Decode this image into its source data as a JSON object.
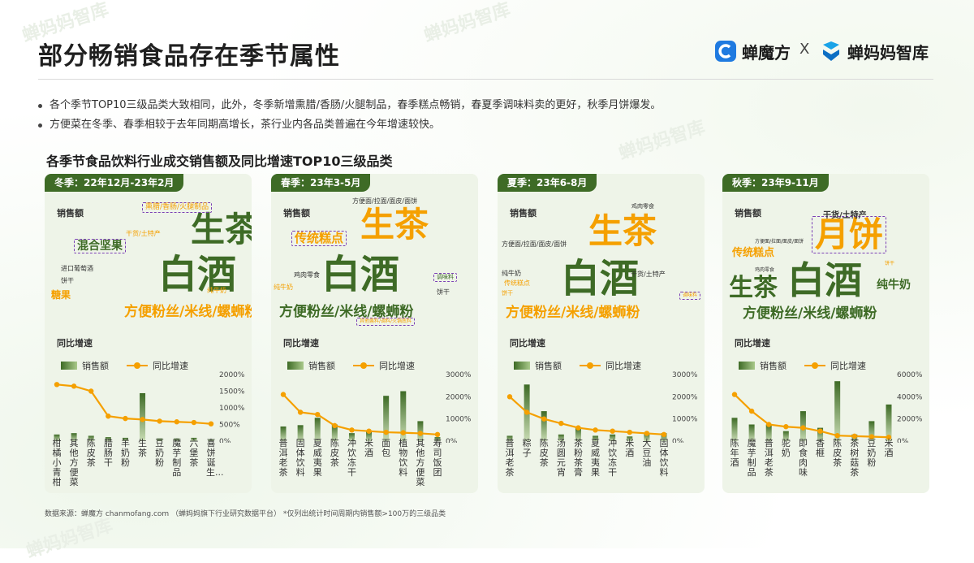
{
  "page": {
    "title": "部分畅销食品存在季节属性",
    "brand_left": "蝉魔方",
    "brand_sep": "X",
    "brand_right": "蝉妈妈智库",
    "watermark": "蝉妈妈智库",
    "bullets": [
      "各个季节TOP10三级品类大致相同，此外，冬季新增熏腊/香肠/火腿制品，春季糕点畅销，春夏季调味料卖的更好，秋季月饼爆发。",
      "方便菜在冬季、春季相较于去年同期高增长，茶行业内各品类普遍在今年增速较快。"
    ],
    "chart_title": "各季节食品饮料行业成交销售额及同比增速TOP10三级品类",
    "source": "数据来源：蝉魔方 chanmofang.com （蝉妈妈旗下行业研究数据平台） *仅列出统计时间周期内销售额>100万的三级品类",
    "sales_label": "销售额",
    "growth_label": "同比增速",
    "legend_sales": "销售额",
    "legend_growth": "同比增速"
  },
  "colors": {
    "dark_green": "#3e6b26",
    "orange": "#f5a000",
    "purple": "#7b3fb5",
    "panel": "#eef4e8"
  },
  "chart_data": [
    {
      "type": "bar+line",
      "season": "冬季：22年12月-23年2月",
      "categories": [
        "柑橘小青柑",
        "其他方便菜",
        "陈皮茶",
        "腊肠干",
        "羊奶粉",
        "生茶",
        "豆奶粉",
        "魔芋制品",
        "六堡茶",
        "喜饼诞生..."
      ],
      "sales": [
        0.1,
        0.12,
        0.08,
        0.06,
        0.05,
        0.72,
        0.04,
        0.04,
        0.05,
        0.03
      ],
      "growth_pct": [
        1700,
        1650,
        1500,
        750,
        680,
        650,
        600,
        580,
        560,
        520
      ],
      "y_ticks": [
        "2000%",
        "1500%",
        "1000%",
        "500%",
        "0%"
      ],
      "y_max": 2000,
      "wordcloud": [
        {
          "text": "白酒",
          "size": 48,
          "color": "#3e6b26",
          "bold": true
        },
        {
          "text": "生茶",
          "size": 42,
          "color": "#3e6b26",
          "bold": true
        },
        {
          "text": "方便粉丝/米线/螺蛳粉",
          "size": 17,
          "color": "#f5a000",
          "bold": true
        },
        {
          "text": "混合坚果",
          "size": 14,
          "color": "#3e6b26",
          "bold": true,
          "box": true
        },
        {
          "text": "熏腊/香肠/火腿制品",
          "size": 9,
          "color": "#f5a000",
          "box": true
        },
        {
          "text": "干货/土特产",
          "size": 8,
          "color": "#f5a000"
        },
        {
          "text": "进口葡萄酒",
          "size": 8,
          "color": "#333"
        },
        {
          "text": "饼干",
          "size": 8,
          "color": "#333"
        },
        {
          "text": "糖果",
          "size": 12,
          "color": "#f5a000",
          "bold": true
        },
        {
          "text": "纯牛奶",
          "size": 8,
          "color": "#f5a000"
        }
      ]
    },
    {
      "type": "bar+line",
      "season": "春季：23年3-5月",
      "categories": [
        "普洱老茶",
        "固体饮料",
        "夏威夷果",
        "陈皮茶",
        "冲饮冻干",
        "米酒",
        "面包",
        "植物饮料",
        "其他方便菜",
        "寿司饭团"
      ],
      "sales": [
        0.22,
        0.24,
        0.35,
        0.25,
        0.12,
        0.14,
        0.68,
        0.75,
        0.3,
        0.06
      ],
      "growth_pct": [
        2100,
        1300,
        1200,
        700,
        500,
        450,
        400,
        380,
        350,
        300
      ],
      "y_ticks": [
        "3000%",
        "2000%",
        "1000%",
        "0%"
      ],
      "y_max": 3000,
      "wordcloud": [
        {
          "text": "白酒",
          "size": 48,
          "color": "#3e6b26",
          "bold": true
        },
        {
          "text": "生茶",
          "size": 42,
          "color": "#f5a000",
          "bold": true
        },
        {
          "text": "方便粉丝/米线/螺蛳粉",
          "size": 17,
          "color": "#3e6b26",
          "bold": true
        },
        {
          "text": "传统糕点",
          "size": 15,
          "color": "#f5a000",
          "bold": true,
          "box": true
        },
        {
          "text": "方便面/拉面/面皮/面饼",
          "size": 8,
          "color": "#333"
        },
        {
          "text": "鸡肉零食",
          "size": 8,
          "color": "#333"
        },
        {
          "text": "纯牛奶",
          "size": 8,
          "color": "#f5a000"
        },
        {
          "text": "饼干",
          "size": 8,
          "color": "#333"
        },
        {
          "text": "调味料",
          "size": 7,
          "color": "#3e6b26",
          "box": true
        },
        {
          "text": "其他酱料/调料/火锅底料",
          "size": 6,
          "color": "#f5a000",
          "box": true
        }
      ]
    },
    {
      "type": "bar+line",
      "season": "夏季：23年6-8月",
      "categories": [
        "普洱老茶",
        "粽子",
        "陈皮茶",
        "汤圆元宵",
        "茶粉茶膏",
        "夏威夷果",
        "冲饮冻干",
        "米酒",
        "大豆油",
        "固体饮料"
      ],
      "sales": [
        0.08,
        0.85,
        0.45,
        0.1,
        0.2,
        0.08,
        0.1,
        0.07,
        0.12,
        0.12
      ],
      "growth_pct": [
        2000,
        1300,
        1000,
        800,
        600,
        500,
        450,
        400,
        350,
        300
      ],
      "y_ticks": [
        "3000%",
        "2000%",
        "1000%",
        "0%"
      ],
      "y_max": 3000,
      "wordcloud": [
        {
          "text": "白酒",
          "size": 48,
          "color": "#3e6b26",
          "bold": true
        },
        {
          "text": "生茶",
          "size": 42,
          "color": "#f5a000",
          "bold": true
        },
        {
          "text": "方便粉丝/米线/螺蛳粉",
          "size": 17,
          "color": "#f5a000",
          "bold": true
        },
        {
          "text": "方便面/拉面/面皮/面饼",
          "size": 8,
          "color": "#333"
        },
        {
          "text": "鸡肉零食",
          "size": 7,
          "color": "#333"
        },
        {
          "text": "干货/土特产",
          "size": 8,
          "color": "#333"
        },
        {
          "text": "纯牛奶",
          "size": 8,
          "color": "#333"
        },
        {
          "text": "传统糕点",
          "size": 8,
          "color": "#f5a000"
        },
        {
          "text": "饼干",
          "size": 7,
          "color": "#f5a000"
        },
        {
          "text": "调味料",
          "size": 6,
          "color": "#f5a000",
          "box": true
        }
      ]
    },
    {
      "type": "bar+line",
      "season": "秋季：23年9-11月",
      "categories": [
        "陈年酒",
        "魔芋制品",
        "普洱老茶",
        "驼奶",
        "即食肉味",
        "香榧",
        "陈皮茶",
        "茶树菇茶",
        "豆奶粉",
        "米酒"
      ],
      "sales": [
        0.35,
        0.25,
        0.25,
        0.15,
        0.45,
        0.2,
        0.9,
        0.1,
        0.3,
        0.55
      ],
      "growth_pct": [
        4200,
        2700,
        1500,
        1300,
        1200,
        900,
        500,
        450,
        400,
        350
      ],
      "y_ticks": [
        "6000%",
        "4000%",
        "2000%",
        "0%"
      ],
      "y_max": 6000,
      "wordcloud": [
        {
          "text": "白酒",
          "size": 46,
          "color": "#3e6b26",
          "bold": true
        },
        {
          "text": "月饼",
          "size": 42,
          "color": "#f5a000",
          "bold": true,
          "box": true
        },
        {
          "text": "生茶",
          "size": 30,
          "color": "#3e6b26",
          "bold": true
        },
        {
          "text": "方便粉丝/米线/螺蛳粉",
          "size": 17,
          "color": "#3e6b26",
          "bold": true
        },
        {
          "text": "纯牛奶",
          "size": 14,
          "color": "#3e6b26",
          "bold": true
        },
        {
          "text": "传统糕点",
          "size": 13,
          "color": "#f5a000",
          "bold": true
        },
        {
          "text": "干货/土特产",
          "size": 10,
          "color": "#333",
          "bold": true
        },
        {
          "text": "方便面/拉面/面皮/面饼",
          "size": 6,
          "color": "#333"
        },
        {
          "text": "鸡肉零食",
          "size": 6,
          "color": "#333"
        },
        {
          "text": "饼干",
          "size": 6,
          "color": "#f5a000"
        }
      ]
    }
  ]
}
